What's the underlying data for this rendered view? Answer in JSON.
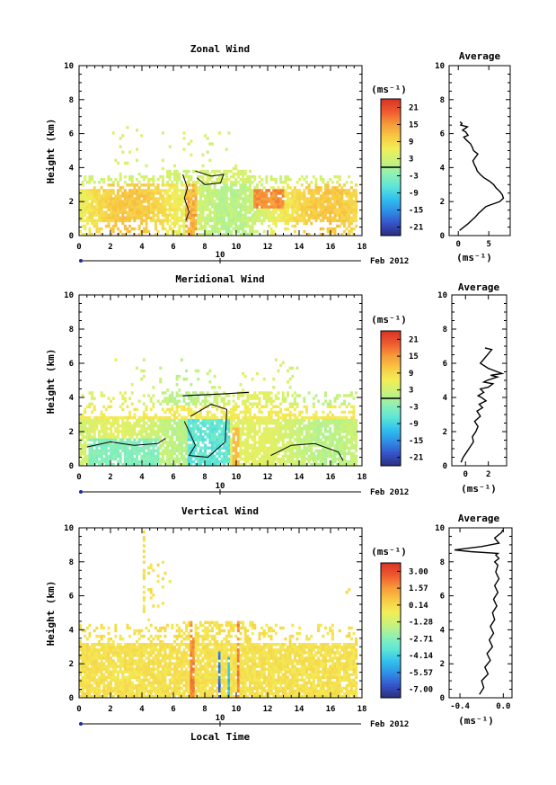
{
  "chart_data": [
    {
      "type": "heatmap",
      "title": "Zonal Wind",
      "ylabel": "Height (km)",
      "xticks": [
        "0",
        "2",
        "4",
        "6",
        "8",
        "10",
        "12",
        "14",
        "16",
        "18"
      ],
      "yticks": [
        "0",
        "2",
        "4",
        "6",
        "8",
        "10"
      ],
      "xlim": [
        0,
        18
      ],
      "ylim": [
        0,
        10
      ],
      "date_day": "10",
      "date_label": "Feb 2012",
      "colorbar": {
        "unit": "(ms⁻¹)",
        "ticks": [
          "21",
          "15",
          "9",
          "3",
          "-3",
          "-9",
          "-15",
          "-21"
        ],
        "range": [
          -24,
          24
        ],
        "zero_line": 0
      },
      "average": {
        "title": "Average",
        "xticks": [
          "0",
          "5"
        ],
        "xlim": [
          -1.5,
          8.5
        ],
        "xlabel": "(ms⁻¹)",
        "x": [
          0.2,
          0.9,
          1.6,
          2.2,
          2.8,
          3.3,
          3.9,
          4.5,
          5.2,
          6.0,
          6.8,
          7.4,
          7.2,
          6.8,
          6.2,
          5.8,
          5.1,
          4.2,
          3.6,
          3.1,
          2.9,
          2.6,
          2.4,
          2.8,
          3.2,
          2.5,
          2.3,
          2.0,
          1.4,
          0.9,
          1.6,
          1.2,
          0.7,
          1.5,
          0.4,
          0.6,
          0.3
        ],
        "y": [
          0.3,
          0.5,
          0.7,
          0.9,
          1.1,
          1.3,
          1.5,
          1.7,
          1.8,
          1.9,
          2.0,
          2.2,
          2.4,
          2.6,
          2.8,
          3.0,
          3.2,
          3.4,
          3.6,
          3.8,
          4.0,
          4.2,
          4.4,
          4.6,
          4.8,
          5.0,
          5.2,
          5.4,
          5.6,
          5.8,
          5.9,
          6.1,
          6.2,
          6.4,
          6.5,
          6.6,
          6.7
        ]
      }
    },
    {
      "type": "heatmap",
      "title": "Meridional Wind",
      "ylabel": "Height (km)",
      "xticks": [
        "0",
        "2",
        "4",
        "6",
        "8",
        "10",
        "12",
        "14",
        "16",
        "18"
      ],
      "yticks": [
        "0",
        "2",
        "4",
        "6",
        "8",
        "10"
      ],
      "xlim": [
        0,
        18
      ],
      "ylim": [
        0,
        10
      ],
      "date_day": "10",
      "date_label": "Feb 2012",
      "colorbar": {
        "unit": "(ms⁻¹)",
        "ticks": [
          "21",
          "15",
          "9",
          "3",
          "-3",
          "-9",
          "-15",
          "-21"
        ],
        "range": [
          -24,
          24
        ],
        "zero_line": 0
      },
      "average": {
        "title": "Average",
        "xticks": [
          "0",
          "2"
        ],
        "xlim": [
          -1.2,
          3.6
        ],
        "xlabel": "(ms⁻¹)",
        "x": [
          -0.4,
          -0.2,
          0.1,
          0.4,
          0.7,
          0.6,
          0.9,
          1.1,
          0.8,
          1.3,
          1.0,
          1.5,
          1.2,
          1.8,
          1.4,
          1.1,
          1.6,
          1.3,
          2.0,
          2.4,
          1.6,
          1.9,
          2.8,
          2.2,
          3.2,
          2.4,
          2.0,
          1.3,
          2.3,
          1.7
        ],
        "y": [
          0.2,
          0.5,
          0.8,
          1.1,
          1.4,
          1.7,
          2.0,
          2.3,
          2.6,
          2.9,
          3.2,
          3.4,
          3.6,
          3.8,
          4.0,
          4.1,
          4.3,
          4.5,
          4.6,
          4.8,
          4.9,
          5.0,
          5.2,
          5.3,
          5.4,
          5.6,
          5.7,
          6.0,
          6.8,
          6.9
        ]
      }
    },
    {
      "type": "heatmap",
      "title": "Vertical Wind",
      "ylabel": "Height (km)",
      "xlabel": "Local Time",
      "xticks": [
        "0",
        "2",
        "4",
        "6",
        "8",
        "10",
        "12",
        "14",
        "16",
        "18"
      ],
      "yticks": [
        "0",
        "2",
        "4",
        "6",
        "8",
        "10"
      ],
      "xlim": [
        0,
        18
      ],
      "ylim": [
        0,
        10
      ],
      "date_day": "10",
      "date_label": "Feb 2012",
      "colorbar": {
        "unit": "(ms⁻¹)",
        "ticks": [
          "3.00",
          "1.57",
          "0.14",
          "-1.28",
          "-2.71",
          "-4.14",
          "-5.57",
          "-7.00"
        ],
        "range": [
          -7.7,
          3.7
        ]
      },
      "average": {
        "title": "Average",
        "xticks": [
          "-0.4",
          "0.0"
        ],
        "xlim": [
          -0.5,
          0.08
        ],
        "xlabel": "(ms⁻¹)",
        "x": [
          -0.22,
          -0.18,
          -0.2,
          -0.14,
          -0.17,
          -0.12,
          -0.15,
          -0.1,
          -0.13,
          -0.09,
          -0.12,
          -0.08,
          -0.1,
          -0.06,
          -0.09,
          -0.05,
          -0.08,
          -0.04,
          -0.07,
          -0.05,
          -0.08,
          -0.04,
          -0.07,
          -0.05,
          -0.3,
          -0.45,
          -0.2,
          -0.04,
          -0.08,
          -0.02,
          0.0
        ],
        "y": [
          0.2,
          0.6,
          1.0,
          1.4,
          1.8,
          2.2,
          2.6,
          3.0,
          3.4,
          3.8,
          4.2,
          4.6,
          5.0,
          5.4,
          5.8,
          6.2,
          6.6,
          7.0,
          7.4,
          7.8,
          8.0,
          8.2,
          8.4,
          8.5,
          8.6,
          8.7,
          8.9,
          9.1,
          9.4,
          9.7,
          9.9
        ]
      }
    }
  ]
}
